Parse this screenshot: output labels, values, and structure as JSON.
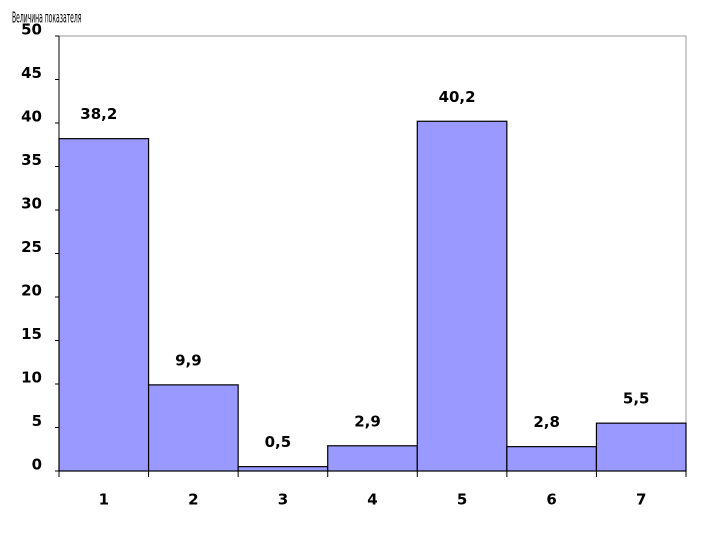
{
  "chart_data": {
    "type": "bar",
    "y_label": "Величина показателя",
    "categories": [
      "1",
      "2",
      "3",
      "4",
      "5",
      "6",
      "7"
    ],
    "values": [
      38.2,
      9.9,
      0.5,
      2.9,
      40.2,
      2.8,
      5.5
    ],
    "value_labels": [
      "38,2",
      "9,9",
      "0,5",
      "2,9",
      "40,2",
      "2,8",
      "5,5"
    ],
    "color": "#9999ff",
    "ylim": [
      0,
      50
    ],
    "yticks": [
      0,
      5,
      10,
      15,
      20,
      25,
      30,
      35,
      40,
      45,
      50
    ]
  }
}
